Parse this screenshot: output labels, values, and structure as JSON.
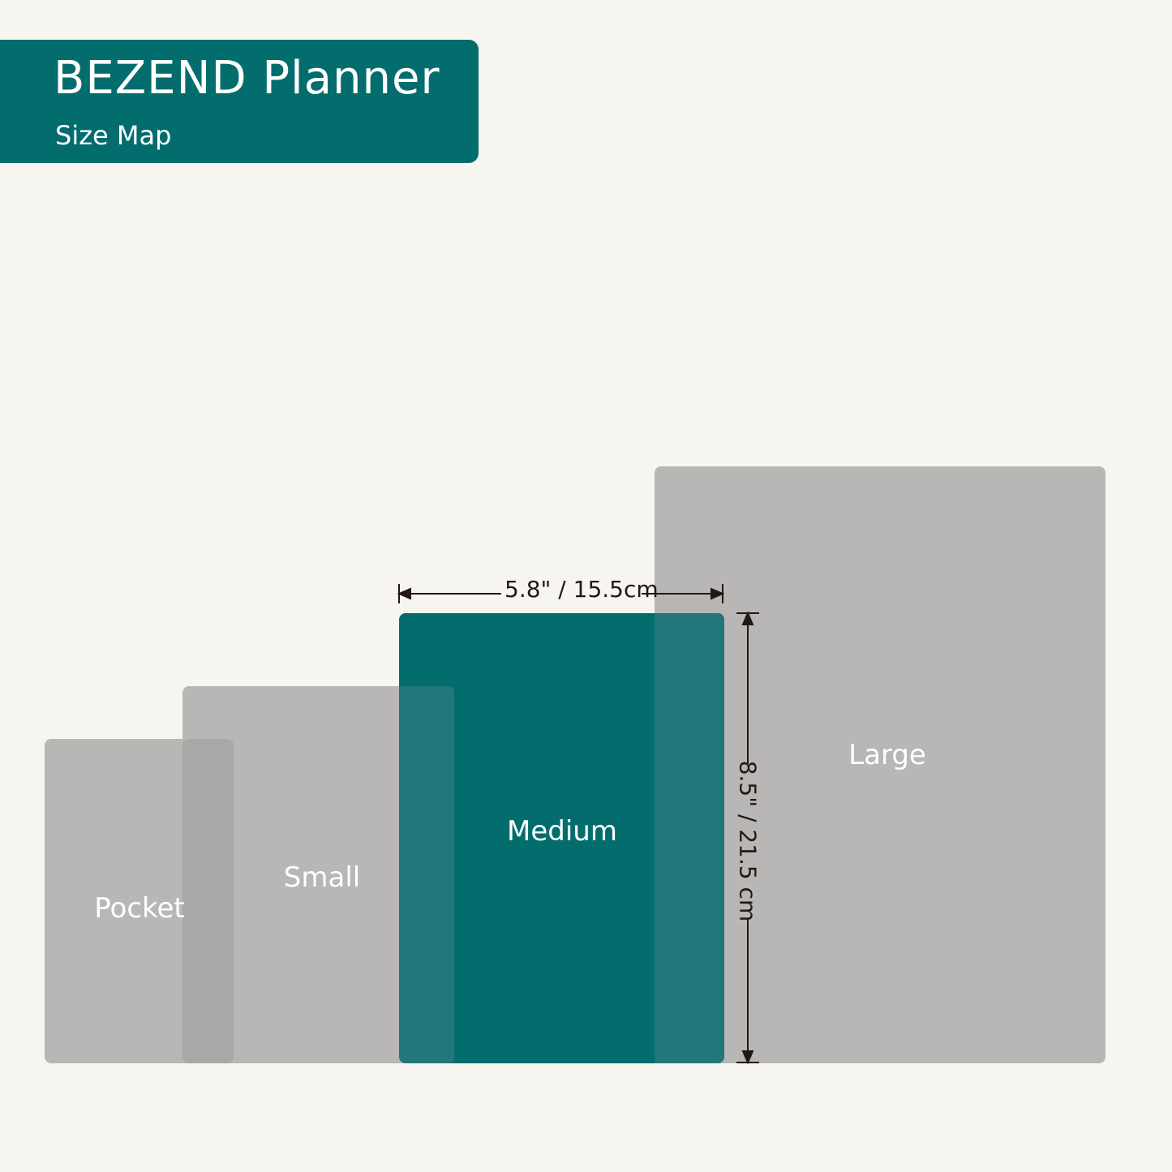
{
  "header": {
    "title": "BEZEND Planner",
    "subtitle": "Size Map"
  },
  "colors": {
    "background": "#f7f5ef",
    "brand_teal": "#036d6e",
    "gray": "#b8b7b6",
    "overlap_teal": "#217779",
    "overlap_gray": "#a9a8a7"
  },
  "sizes": [
    {
      "label": "Pocket"
    },
    {
      "label": "Small"
    },
    {
      "label": "Medium"
    },
    {
      "label": "Large"
    }
  ],
  "dimensions": {
    "width": "5.8\" / 15.5cm",
    "height": "8.5\" / 21.5 cm"
  }
}
